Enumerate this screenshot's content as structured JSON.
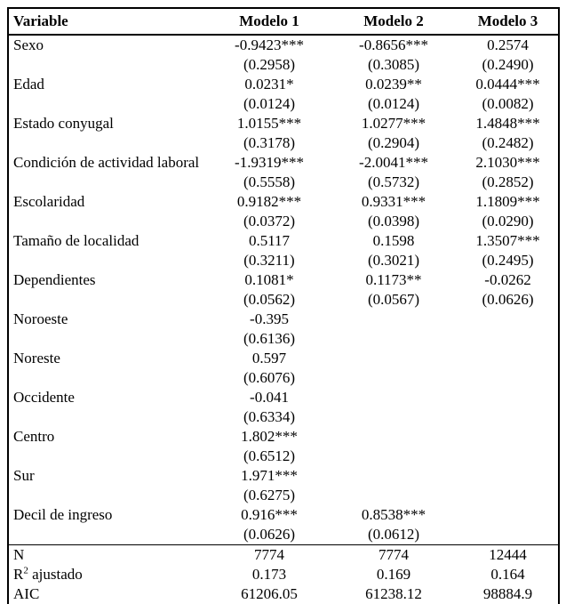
{
  "table": {
    "header": [
      "Variable",
      "Modelo 1",
      "Modelo 2",
      "Modelo 3"
    ],
    "rows": [
      {
        "label": "Sexo",
        "values": [
          {
            "coef": "-0.9423***",
            "se": "(0.2958)"
          },
          {
            "coef": "-0.8656***",
            "se": "(0.3085)"
          },
          {
            "coef": "0.2574",
            "se": "(0.2490)"
          }
        ]
      },
      {
        "label": "Edad",
        "values": [
          {
            "coef": "0.0231*",
            "se": "(0.0124)"
          },
          {
            "coef": "0.0239**",
            "se": "(0.0124)"
          },
          {
            "coef": "0.0444***",
            "se": "(0.0082)"
          }
        ]
      },
      {
        "label": "Estado conyugal",
        "values": [
          {
            "coef": "1.0155***",
            "se": "(0.3178)"
          },
          {
            "coef": "1.0277***",
            "se": "(0.2904)"
          },
          {
            "coef": "1.4848***",
            "se": "(0.2482)"
          }
        ]
      },
      {
        "label": "Condición de actividad laboral",
        "values": [
          {
            "coef": "-1.9319***",
            "se": "(0.5558)"
          },
          {
            "coef": "-2.0041***",
            "se": "(0.5732)"
          },
          {
            "coef": "2.1030***",
            "se": "(0.2852)"
          }
        ]
      },
      {
        "label": "Escolaridad",
        "values": [
          {
            "coef": "0.9182***",
            "se": "(0.0372)"
          },
          {
            "coef": "0.9331***",
            "se": "(0.0398)"
          },
          {
            "coef": "1.1809***",
            "se": "(0.0290)"
          }
        ]
      },
      {
        "label": "Tamaño de localidad",
        "values": [
          {
            "coef": "0.5117",
            "se": "(0.3211)"
          },
          {
            "coef": "0.1598",
            "se": "(0.3021)"
          },
          {
            "coef": "1.3507***",
            "se": "(0.2495)"
          }
        ]
      },
      {
        "label": "Dependientes",
        "values": [
          {
            "coef": "0.1081*",
            "se": "(0.0562)"
          },
          {
            "coef": "0.1173**",
            "se": "(0.0567)"
          },
          {
            "coef": "-0.0262",
            "se": "(0.0626)"
          }
        ]
      },
      {
        "label": "Noroeste",
        "values": [
          {
            "coef": "-0.395",
            "se": "(0.6136)"
          },
          null,
          null
        ]
      },
      {
        "label": "Noreste",
        "values": [
          {
            "coef": "0.597",
            "se": "(0.6076)"
          },
          null,
          null
        ]
      },
      {
        "label": "Occidente",
        "values": [
          {
            "coef": "-0.041",
            "se": "(0.6334)"
          },
          null,
          null
        ]
      },
      {
        "label": "Centro",
        "values": [
          {
            "coef": "1.802***",
            "se": "(0.6512)"
          },
          null,
          null
        ]
      },
      {
        "label": "Sur",
        "values": [
          {
            "coef": "1.971***",
            "se": "(0.6275)"
          },
          null,
          null
        ]
      },
      {
        "label": "Decil de ingreso",
        "values": [
          {
            "coef": "0.916***",
            "se": "(0.0626)"
          },
          {
            "coef": "0.8538***",
            "se": "(0.0612)"
          },
          null
        ]
      }
    ],
    "stats": [
      {
        "label_parts": [
          {
            "text": "N"
          }
        ],
        "values": [
          "7774",
          "7774",
          "12444"
        ]
      },
      {
        "label_parts": [
          {
            "text": "R"
          },
          {
            "text": "2",
            "sup": true
          },
          {
            "text": " ajustado"
          }
        ],
        "values": [
          "0.173",
          "0.169",
          "0.164"
        ]
      },
      {
        "label_parts": [
          {
            "text": "AIC"
          }
        ],
        "values": [
          "61206.05",
          "61238.12",
          "98884.9"
        ]
      }
    ]
  },
  "colors": {
    "text": "#000000",
    "background": "#ffffff",
    "border": "#000000"
  }
}
